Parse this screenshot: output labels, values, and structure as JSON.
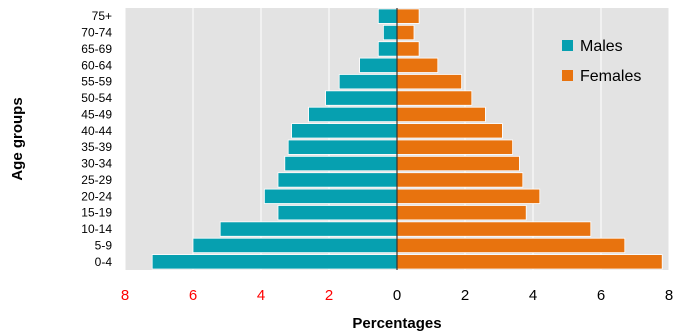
{
  "chart_data": {
    "type": "bar",
    "orientation": "horizontal",
    "layout": "population-pyramid",
    "categories": [
      "0-4",
      "5-9",
      "10-14",
      "15-19",
      "20-24",
      "25-29",
      "30-34",
      "35-39",
      "40-44",
      "45-49",
      "50-54",
      "55-59",
      "60-64",
      "65-69",
      "70-74",
      "75+"
    ],
    "series": [
      {
        "name": "Males",
        "color": "#06a0b0",
        "values": [
          7.2,
          6.0,
          5.2,
          3.5,
          3.9,
          3.5,
          3.3,
          3.2,
          3.1,
          2.6,
          2.1,
          1.7,
          1.1,
          0.55,
          0.4,
          0.55
        ]
      },
      {
        "name": "Females",
        "color": "#e8730e",
        "values": [
          7.8,
          6.7,
          5.7,
          3.8,
          4.2,
          3.7,
          3.6,
          3.4,
          3.1,
          2.6,
          2.2,
          1.9,
          1.2,
          0.65,
          0.5,
          0.65
        ]
      }
    ],
    "xlabel": "Percentages",
    "ylabel": "Age groups",
    "xlim": [
      -8,
      8
    ],
    "xticks": [
      -8,
      -6,
      -4,
      -2,
      0,
      2,
      4,
      6,
      8
    ],
    "xtick_labels": [
      "8",
      "6",
      "4",
      "2",
      "0",
      "2",
      "4",
      "6",
      "8"
    ],
    "xtick_colors": {
      "negative": "#ff0000",
      "non_negative": "#000000"
    },
    "grid": true,
    "background_color": "#e3e3e3",
    "legend_position": "top-right"
  }
}
